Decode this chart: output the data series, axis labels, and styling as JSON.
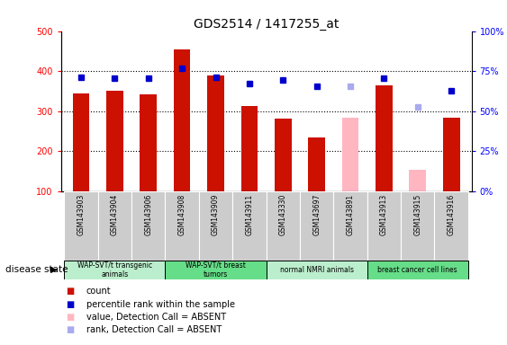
{
  "title": "GDS2514 / 1417255_at",
  "samples": [
    "GSM143903",
    "GSM143904",
    "GSM143906",
    "GSM143908",
    "GSM143909",
    "GSM143911",
    "GSM143330",
    "GSM143697",
    "GSM143891",
    "GSM143913",
    "GSM143915",
    "GSM143916"
  ],
  "bar_values": [
    345,
    352,
    342,
    455,
    390,
    312,
    282,
    235,
    null,
    365,
    null,
    285
  ],
  "bar_absent_values": [
    null,
    null,
    null,
    null,
    null,
    null,
    null,
    null,
    283,
    null,
    155,
    null
  ],
  "percentile_values": [
    385,
    383,
    383,
    407,
    385,
    368,
    377,
    363,
    null,
    383,
    null,
    352
  ],
  "percentile_absent_values": [
    null,
    null,
    null,
    null,
    null,
    null,
    null,
    null,
    363,
    null,
    310,
    null
  ],
  "bar_color": "#CC1100",
  "bar_absent_color": "#FFB6C1",
  "percentile_color": "#0000CC",
  "percentile_absent_color": "#AAAAEE",
  "ylim_left": [
    100,
    500
  ],
  "ylim_right": [
    0,
    100
  ],
  "yticks_left": [
    100,
    200,
    300,
    400,
    500
  ],
  "yticks_right": [
    0,
    25,
    50,
    75,
    100
  ],
  "ytick_labels_right": [
    "0%",
    "25%",
    "50%",
    "75%",
    "100%"
  ],
  "groups": [
    {
      "label": "WAP-SVT/t transgenic\nanimals",
      "start": 0,
      "end": 2,
      "color": "#BBEECC"
    },
    {
      "label": "WAP-SVT/t breast\ntumors",
      "start": 3,
      "end": 5,
      "color": "#66DD88"
    },
    {
      "label": "normal NMRI animals",
      "start": 6,
      "end": 8,
      "color": "#BBEECC"
    },
    {
      "label": "breast cancer cell lines",
      "start": 9,
      "end": 11,
      "color": "#66DD88"
    }
  ],
  "disease_state_label": "disease state",
  "legend_items": [
    {
      "label": "count",
      "color": "#CC1100"
    },
    {
      "label": "percentile rank within the sample",
      "color": "#0000CC"
    },
    {
      "label": "value, Detection Call = ABSENT",
      "color": "#FFB6C1"
    },
    {
      "label": "rank, Detection Call = ABSENT",
      "color": "#AAAAEE"
    }
  ],
  "bar_width": 0.5,
  "pct_marker_size": 5
}
